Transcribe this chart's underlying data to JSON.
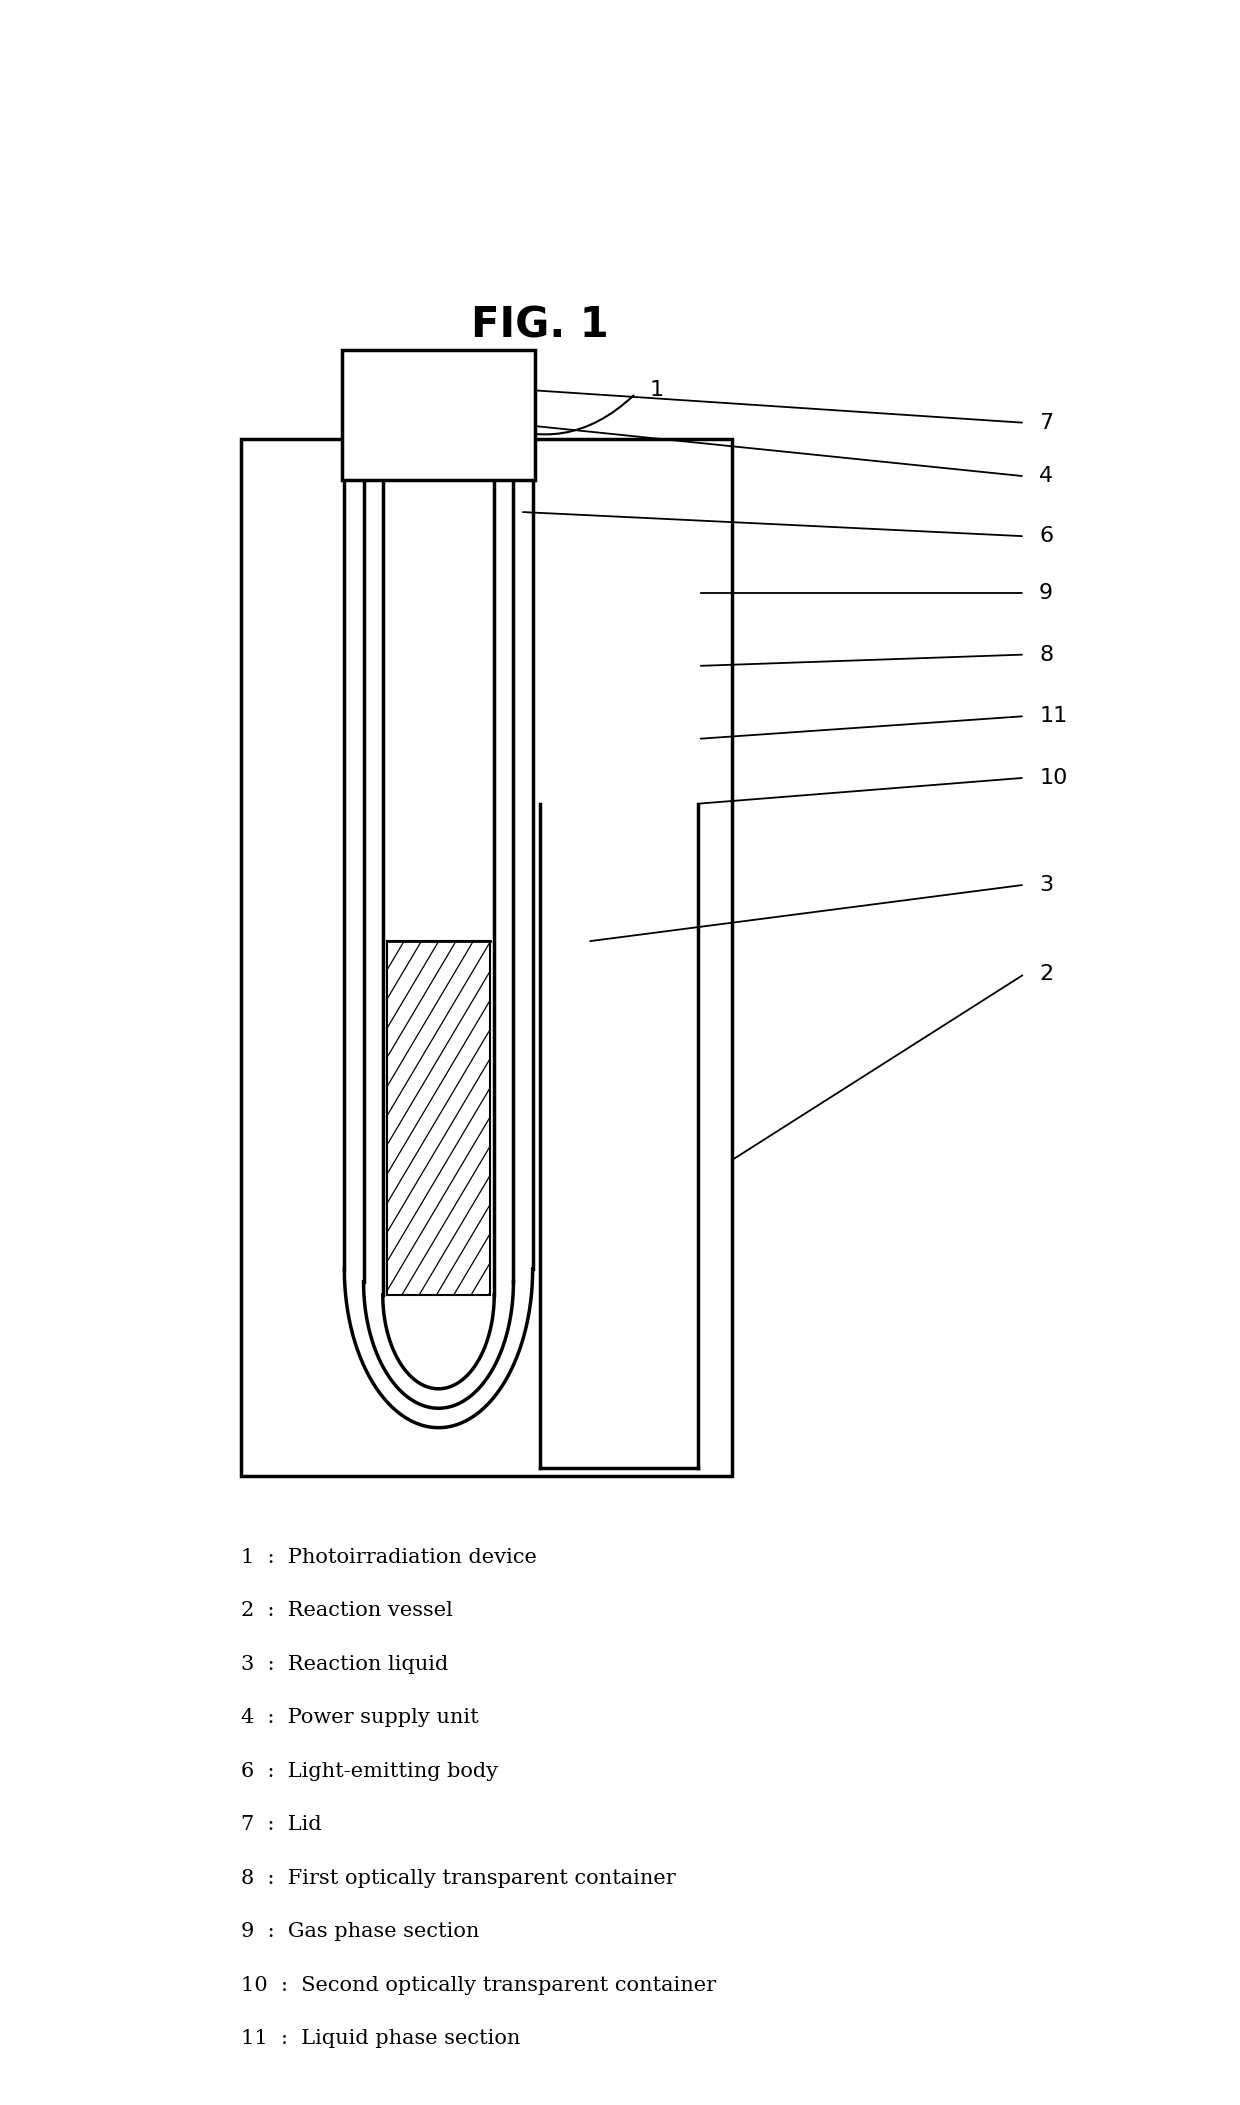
{
  "title": "FIG. 1",
  "title_fontsize": 30,
  "title_fontweight": "bold",
  "bg_color": "#ffffff",
  "legend_items": [
    {
      "num": "1",
      "text": "Photoirradiation device"
    },
    {
      "num": "2",
      "text": "Reaction vessel"
    },
    {
      "num": "3",
      "text": "Reaction liquid"
    },
    {
      "num": "4",
      "text": "Power supply unit"
    },
    {
      "num": "6",
      "text": "Light-emitting body"
    },
    {
      "num": "7",
      "text": "Lid"
    },
    {
      "num": "8",
      "text": "First optically transparent container"
    },
    {
      "num": "9",
      "text": "Gas phase section"
    },
    {
      "num": "10",
      "text": "Second optically transparent container"
    },
    {
      "num": "11",
      "text": "Liquid phase section"
    }
  ]
}
